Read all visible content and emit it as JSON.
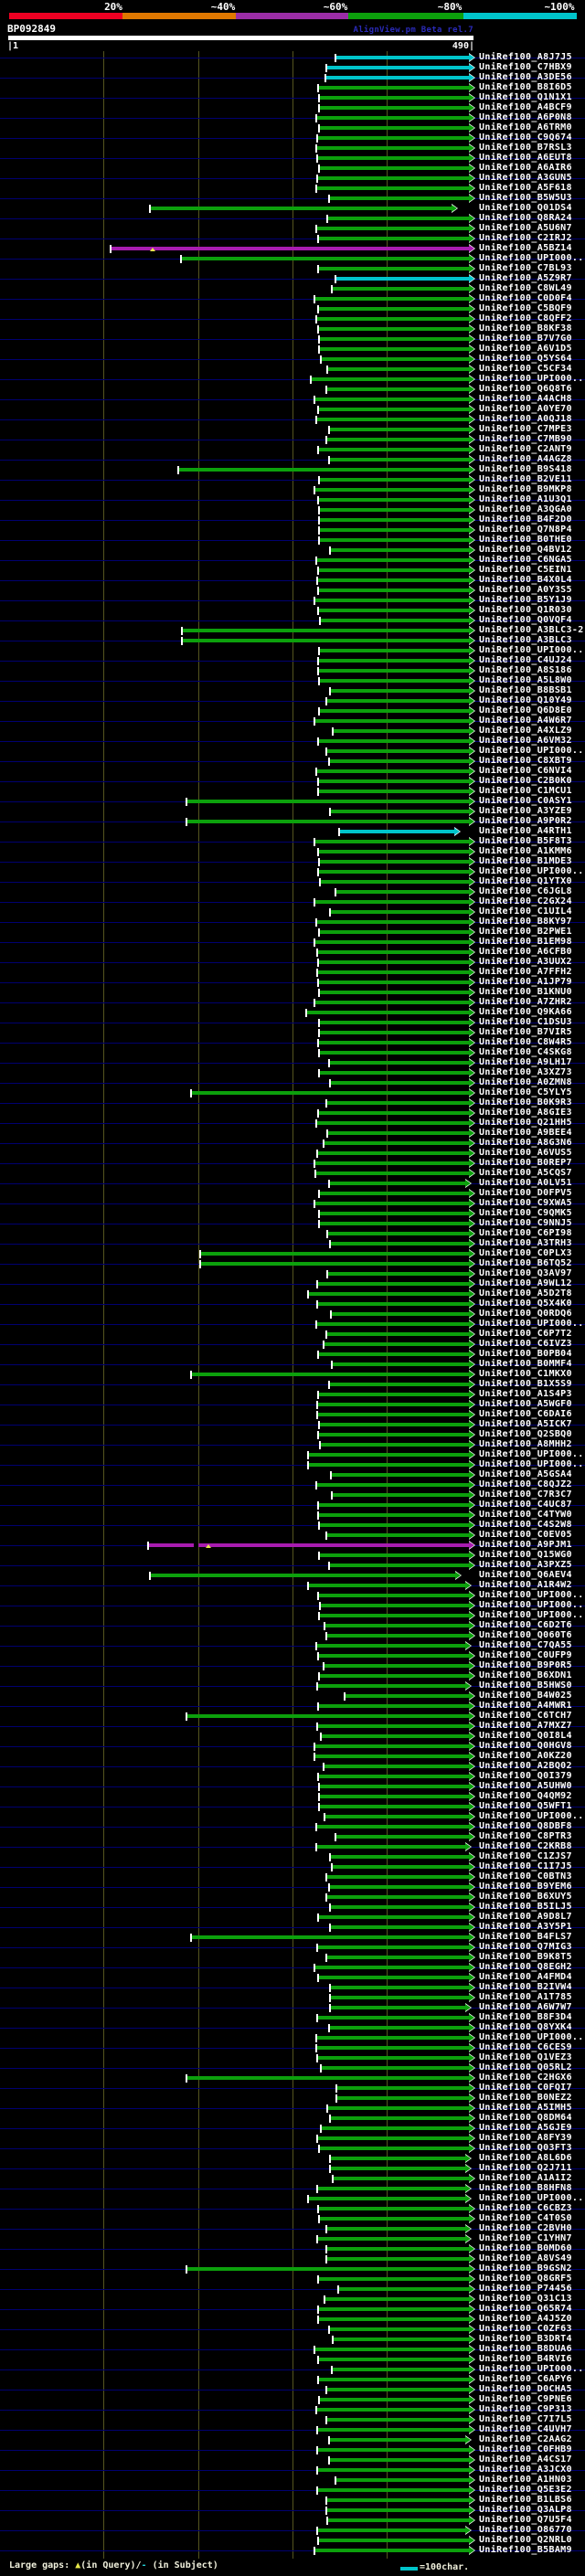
{
  "header": {
    "scale_labels": [
      "20%",
      "~40%",
      "~60%",
      "~80%",
      "~100%"
    ],
    "scale_colors": [
      "#ee0022",
      "#e07800",
      "#9b2da6",
      "#0ca00c",
      "#00c5cb"
    ],
    "query_name": "BP092849",
    "watermark": "AlignView.pm Beta rel.7",
    "ruler_start_label": "|1",
    "ruler_end_label": "490|"
  },
  "footer": {
    "gaps_prefix": "Large gaps: ",
    "query_gap_marker": "▲",
    "query_gap_text": "(in Query)/",
    "subject_gap_marker": "-",
    "subject_gap_text": " (in Subject)",
    "scalebar_label": "=100char."
  },
  "colors": {
    "green": "#0ca00c",
    "cyan": "#00c5cb",
    "magenta": "#a81cb0",
    "query_bar": "#ffffff",
    "guide_line": "#000070",
    "grid_line": "#55551f"
  },
  "label_prefix": "UniRef100_",
  "hits": [
    {
      "id": "A8J7J5",
      "s": 368,
      "c": "cy"
    },
    {
      "id": "C7HBX9",
      "s": 358,
      "c": "cy"
    },
    {
      "id": "A3DE56",
      "s": 357,
      "c": "cy"
    },
    {
      "id": "B8I6D5",
      "s": 349
    },
    {
      "id": "Q1N1X1",
      "s": 350
    },
    {
      "id": "A4BCF9",
      "s": 350
    },
    {
      "id": "A6P0N8",
      "s": 347
    },
    {
      "id": "A6TRM0",
      "s": 350
    },
    {
      "id": "C9Q674",
      "s": 348
    },
    {
      "id": "B7RSL3",
      "s": 347
    },
    {
      "id": "A6EUT8",
      "s": 348
    },
    {
      "id": "A6AIR6",
      "s": 350
    },
    {
      "id": "A3GUN5",
      "s": 348
    },
    {
      "id": "A5F618",
      "s": 347
    },
    {
      "id": "B5W5U3",
      "s": 361
    },
    {
      "id": "Q01DS4",
      "s": 165,
      "e": 494
    },
    {
      "id": "Q8RA24",
      "s": 359
    },
    {
      "id": "A5U6N7",
      "s": 347
    },
    {
      "id": "C2IRJ2",
      "s": 349
    },
    {
      "id": "A5BZ14",
      "s": 122,
      "c": "mg",
      "t": 167
    },
    {
      "id": "UPI000..",
      "s": 199
    },
    {
      "id": "C7BL93",
      "s": 349
    },
    {
      "id": "A5Z9R7",
      "s": 368,
      "c": "cy"
    },
    {
      "id": "C8WL49",
      "s": 364
    },
    {
      "id": "C0D0F4",
      "s": 345
    },
    {
      "id": "C5BQF9",
      "s": 349
    },
    {
      "id": "C8QFF2",
      "s": 347
    },
    {
      "id": "B8KF38",
      "s": 349
    },
    {
      "id": "B7V7G0",
      "s": 350
    },
    {
      "id": "A6V1D5",
      "s": 350
    },
    {
      "id": "Q5YS64",
      "s": 352
    },
    {
      "id": "C5CF34",
      "s": 359
    },
    {
      "id": "UPI000..",
      "s": 341
    },
    {
      "id": "Q6Q8T6",
      "s": 358
    },
    {
      "id": "A4ACH8",
      "s": 345
    },
    {
      "id": "A0YE70",
      "s": 349
    },
    {
      "id": "A0QJ18",
      "s": 347
    },
    {
      "id": "C7MPE3",
      "s": 361
    },
    {
      "id": "C7MB90",
      "s": 358
    },
    {
      "id": "C2ANT9",
      "s": 349
    },
    {
      "id": "A4AGZ8",
      "s": 361
    },
    {
      "id": "B9S418",
      "s": 196
    },
    {
      "id": "B2VE11",
      "s": 350
    },
    {
      "id": "B9MKP8",
      "s": 345
    },
    {
      "id": "A1U3Q1",
      "s": 349
    },
    {
      "id": "A3QGA0",
      "s": 350
    },
    {
      "id": "B4F2D0",
      "s": 350
    },
    {
      "id": "Q7N8P4",
      "s": 350
    },
    {
      "id": "B0THE0",
      "s": 350
    },
    {
      "id": "Q4BV12",
      "s": 362
    },
    {
      "id": "C6NGA5",
      "s": 347
    },
    {
      "id": "C5EIN1",
      "s": 349
    },
    {
      "id": "B4X0L4",
      "s": 348
    },
    {
      "id": "A0Y3S5",
      "s": 349
    },
    {
      "id": "B5Y1J9",
      "s": 345
    },
    {
      "id": "Q1R030",
      "s": 349
    },
    {
      "id": "Q0VQF4",
      "s": 351
    },
    {
      "id": "A3BLC3-2",
      "s": 200
    },
    {
      "id": "A3BLC3",
      "s": 200
    },
    {
      "id": "UPI000..",
      "s": 350
    },
    {
      "id": "C4UJ24",
      "s": 349
    },
    {
      "id": "A8S186",
      "s": 349
    },
    {
      "id": "A5L8W0",
      "s": 350
    },
    {
      "id": "B8BSB1",
      "s": 362
    },
    {
      "id": "Q10Y49",
      "s": 358
    },
    {
      "id": "Q6D8E0",
      "s": 350
    },
    {
      "id": "A4W6R7",
      "s": 345
    },
    {
      "id": "A4XLZ9",
      "s": 365
    },
    {
      "id": "A6VM32",
      "s": 349
    },
    {
      "id": "UPI000..",
      "s": 358
    },
    {
      "id": "C8XBT9",
      "s": 361
    },
    {
      "id": "C6NVI4",
      "s": 347
    },
    {
      "id": "C2B0K0",
      "s": 349
    },
    {
      "id": "C1MCU1",
      "s": 349
    },
    {
      "id": "C0ASY1",
      "s": 205
    },
    {
      "id": "A3YZE9",
      "s": 362
    },
    {
      "id": "A9P0R2",
      "s": 205
    },
    {
      "id": "A4RTH1",
      "s": 372,
      "e": 497,
      "c": "cy"
    },
    {
      "id": "B5F8T3",
      "s": 345
    },
    {
      "id": "A1KMM6",
      "s": 349
    },
    {
      "id": "B1MDE3",
      "s": 350
    },
    {
      "id": "UPI000..",
      "s": 349
    },
    {
      "id": "Q1YTX0",
      "s": 351
    },
    {
      "id": "C6JGL8",
      "s": 368
    },
    {
      "id": "C2GX24",
      "s": 345
    },
    {
      "id": "C1UIL4",
      "s": 362
    },
    {
      "id": "B8KY97",
      "s": 347
    },
    {
      "id": "B2PWE1",
      "s": 350
    },
    {
      "id": "B1EM98",
      "s": 345
    },
    {
      "id": "A6CFB0",
      "s": 348
    },
    {
      "id": "A3UUX2",
      "s": 349
    },
    {
      "id": "A7FFH2",
      "s": 348
    },
    {
      "id": "A1JP79",
      "s": 349
    },
    {
      "id": "B1KNU0",
      "s": 350
    },
    {
      "id": "A7ZHR2",
      "s": 345
    },
    {
      "id": "Q9KA66",
      "s": 336
    },
    {
      "id": "C1DSU3",
      "s": 350
    },
    {
      "id": "B7VIR5",
      "s": 350
    },
    {
      "id": "C8W4R5",
      "s": 349
    },
    {
      "id": "C4SKG8",
      "s": 350
    },
    {
      "id": "A9LH17",
      "s": 361
    },
    {
      "id": "A3XZ73",
      "s": 350
    },
    {
      "id": "A0ZMN8",
      "s": 362
    },
    {
      "id": "C5YLY5",
      "s": 210
    },
    {
      "id": "B0K9R3",
      "s": 358
    },
    {
      "id": "A8GIE3",
      "s": 349
    },
    {
      "id": "Q21HH5",
      "s": 347
    },
    {
      "id": "A9BEE4",
      "s": 359
    },
    {
      "id": "A8G3N6",
      "s": 355
    },
    {
      "id": "A6VUS5",
      "s": 348
    },
    {
      "id": "B0REP7",
      "s": 345
    },
    {
      "id": "A5CQS7",
      "s": 346
    },
    {
      "id": "A0LV51",
      "s": 361,
      "e": 509
    },
    {
      "id": "D0FPV5",
      "s": 350
    },
    {
      "id": "C9XWA5",
      "s": 345
    },
    {
      "id": "C9QMK5",
      "s": 350
    },
    {
      "id": "C9NNJ5",
      "s": 350
    },
    {
      "id": "C6PI98",
      "s": 359
    },
    {
      "id": "A3TRH3",
      "s": 362
    },
    {
      "id": "C0PLX3",
      "s": 220
    },
    {
      "id": "B6TQ52",
      "s": 220
    },
    {
      "id": "Q3AV97",
      "s": 359
    },
    {
      "id": "A9WL12",
      "s": 348
    },
    {
      "id": "A5D2T8",
      "s": 338
    },
    {
      "id": "Q5X4K0",
      "s": 348
    },
    {
      "id": "Q0RDQ6",
      "s": 363
    },
    {
      "id": "UPI000..",
      "s": 347
    },
    {
      "id": "C6P7T2",
      "s": 358
    },
    {
      "id": "C6IVZ3",
      "s": 355
    },
    {
      "id": "B0PB04",
      "s": 349
    },
    {
      "id": "B0MMF4",
      "s": 364
    },
    {
      "id": "C1MKX0",
      "s": 210
    },
    {
      "id": "B1X5S9",
      "s": 361
    },
    {
      "id": "A1S4P3",
      "s": 349
    },
    {
      "id": "A5WGF0",
      "s": 348
    },
    {
      "id": "C6DAI6",
      "s": 348
    },
    {
      "id": "A5ICK7",
      "s": 350
    },
    {
      "id": "Q2SBQ0",
      "s": 349
    },
    {
      "id": "A8MHH2",
      "s": 351
    },
    {
      "id": "UPI000..",
      "s": 338
    },
    {
      "id": "UPI000..",
      "s": 338
    },
    {
      "id": "A5GSA4",
      "s": 363
    },
    {
      "id": "C8QJZ2",
      "s": 347
    },
    {
      "id": "C7R3C7",
      "s": 364
    },
    {
      "id": "C4UC87",
      "s": 349
    },
    {
      "id": "C4TYW0",
      "s": 349
    },
    {
      "id": "C4S2W8",
      "s": 350
    },
    {
      "id": "C0EV05",
      "s": 358
    },
    {
      "id": "A9PJM1",
      "s": 163,
      "c": "mg",
      "t": 228,
      "bx": 212
    },
    {
      "id": "Q15WG0",
      "s": 350
    },
    {
      "id": "A3PXZ5",
      "s": 361
    },
    {
      "id": "Q6AEV4",
      "s": 165,
      "e": 498
    },
    {
      "id": "A1R4W2",
      "s": 338,
      "e": 509
    },
    {
      "id": "UPI000..",
      "s": 349
    },
    {
      "id": "UPI000..",
      "s": 351
    },
    {
      "id": "UPI000..",
      "s": 350
    },
    {
      "id": "C6D2T6",
      "s": 356
    },
    {
      "id": "Q060T6",
      "s": 358
    },
    {
      "id": "C7QA55",
      "s": 347,
      "e": 509
    },
    {
      "id": "C0UFP9",
      "s": 349
    },
    {
      "id": "B9P0R5",
      "s": 355
    },
    {
      "id": "B6XDN1",
      "s": 350
    },
    {
      "id": "B5HWS0",
      "s": 348,
      "e": 509
    },
    {
      "id": "B4W025",
      "s": 378
    },
    {
      "id": "A4MWR1",
      "s": 349
    },
    {
      "id": "C6TCH7",
      "s": 205
    },
    {
      "id": "A7MXZ7",
      "s": 348
    },
    {
      "id": "Q0I8L4",
      "s": 352
    },
    {
      "id": "Q0HGV8",
      "s": 345
    },
    {
      "id": "A0KZ20",
      "s": 345
    },
    {
      "id": "A2BQ02",
      "s": 355
    },
    {
      "id": "Q0I379",
      "s": 349
    },
    {
      "id": "A5UHW0",
      "s": 350
    },
    {
      "id": "Q4QM92",
      "s": 350
    },
    {
      "id": "Q5WFT1",
      "s": 350
    },
    {
      "id": "UPI000..",
      "s": 356
    },
    {
      "id": "Q8DBF8",
      "s": 347
    },
    {
      "id": "C8PTR3",
      "s": 368
    },
    {
      "id": "C2KRB8",
      "s": 347,
      "e": 509
    },
    {
      "id": "C1ZJS7",
      "s": 362
    },
    {
      "id": "C1I7J5",
      "s": 364
    },
    {
      "id": "C0BTN3",
      "s": 358
    },
    {
      "id": "B9YEM6",
      "s": 361
    },
    {
      "id": "B6XUY5",
      "s": 358
    },
    {
      "id": "B5ILJ5",
      "s": 362
    },
    {
      "id": "A9D8L7",
      "s": 349
    },
    {
      "id": "A3Y5P1",
      "s": 362
    },
    {
      "id": "B4FLS7",
      "s": 210
    },
    {
      "id": "Q7MIG3",
      "s": 348
    },
    {
      "id": "B9K8T5",
      "s": 358
    },
    {
      "id": "Q8EGH2",
      "s": 345
    },
    {
      "id": "A4FMD4",
      "s": 349
    },
    {
      "id": "B2IVW4",
      "s": 362
    },
    {
      "id": "A1T785",
      "s": 362
    },
    {
      "id": "A6W7W7",
      "s": 362,
      "e": 509
    },
    {
      "id": "B8F3D4",
      "s": 348
    },
    {
      "id": "Q8YXK4",
      "s": 361
    },
    {
      "id": "UPI000..",
      "s": 347
    },
    {
      "id": "C6CES9",
      "s": 347
    },
    {
      "id": "Q1VEZ3",
      "s": 348
    },
    {
      "id": "Q05RL2",
      "s": 352
    },
    {
      "id": "C2HGX6",
      "s": 205
    },
    {
      "id": "C0FQI7",
      "s": 369
    },
    {
      "id": "B0NEZ2",
      "s": 369
    },
    {
      "id": "A5IMH5",
      "s": 359
    },
    {
      "id": "Q8DM64",
      "s": 362
    },
    {
      "id": "A5GJE9",
      "s": 352
    },
    {
      "id": "A8FY39",
      "s": 348
    },
    {
      "id": "Q03FT3",
      "s": 350
    },
    {
      "id": "A8L6D6",
      "s": 362,
      "e": 509
    },
    {
      "id": "Q2J711",
      "s": 362,
      "e": 509
    },
    {
      "id": "A1A1I2",
      "s": 365
    },
    {
      "id": "B8HFN8",
      "s": 348,
      "e": 509
    },
    {
      "id": "UPI000..",
      "s": 338,
      "e": 509
    },
    {
      "id": "C6CBZ3",
      "s": 349
    },
    {
      "id": "C4T0S0",
      "s": 350
    },
    {
      "id": "C2BVH0",
      "s": 358,
      "e": 509
    },
    {
      "id": "C1YHN7",
      "s": 348,
      "e": 509
    },
    {
      "id": "B0MD60",
      "s": 358
    },
    {
      "id": "A8VS49",
      "s": 358
    },
    {
      "id": "B9GSN2",
      "s": 205
    },
    {
      "id": "Q8GRF5",
      "s": 349
    },
    {
      "id": "P74456",
      "s": 371
    },
    {
      "id": "Q31C13",
      "s": 356
    },
    {
      "id": "Q65R74",
      "s": 349
    },
    {
      "id": "A4J5Z0",
      "s": 349
    },
    {
      "id": "C0ZF63",
      "s": 361
    },
    {
      "id": "B3DRT4",
      "s": 365
    },
    {
      "id": "B8DUA6",
      "s": 345
    },
    {
      "id": "B4RVI6",
      "s": 349
    },
    {
      "id": "UPI000..",
      "s": 364
    },
    {
      "id": "C6APY6",
      "s": 349
    },
    {
      "id": "D0CHA5",
      "s": 358
    },
    {
      "id": "C9PNE6",
      "s": 350
    },
    {
      "id": "C9P313",
      "s": 347
    },
    {
      "id": "C7I7L5",
      "s": 358
    },
    {
      "id": "C4UVH7",
      "s": 348
    },
    {
      "id": "C2AAG2",
      "s": 361,
      "e": 509
    },
    {
      "id": "C0FHB9",
      "s": 348
    },
    {
      "id": "A4CS17",
      "s": 361
    },
    {
      "id": "A3JCX0",
      "s": 348
    },
    {
      "id": "A1HN03",
      "s": 368
    },
    {
      "id": "Q5E3E2",
      "s": 348
    },
    {
      "id": "B1LBS6",
      "s": 358
    },
    {
      "id": "Q3ALP8",
      "s": 358
    },
    {
      "id": "Q7U5F4",
      "s": 359
    },
    {
      "id": "O86770",
      "s": 348,
      "e": 509
    },
    {
      "id": "Q2NRL0",
      "s": 349
    },
    {
      "id": "B5BAM9",
      "s": 345
    }
  ]
}
